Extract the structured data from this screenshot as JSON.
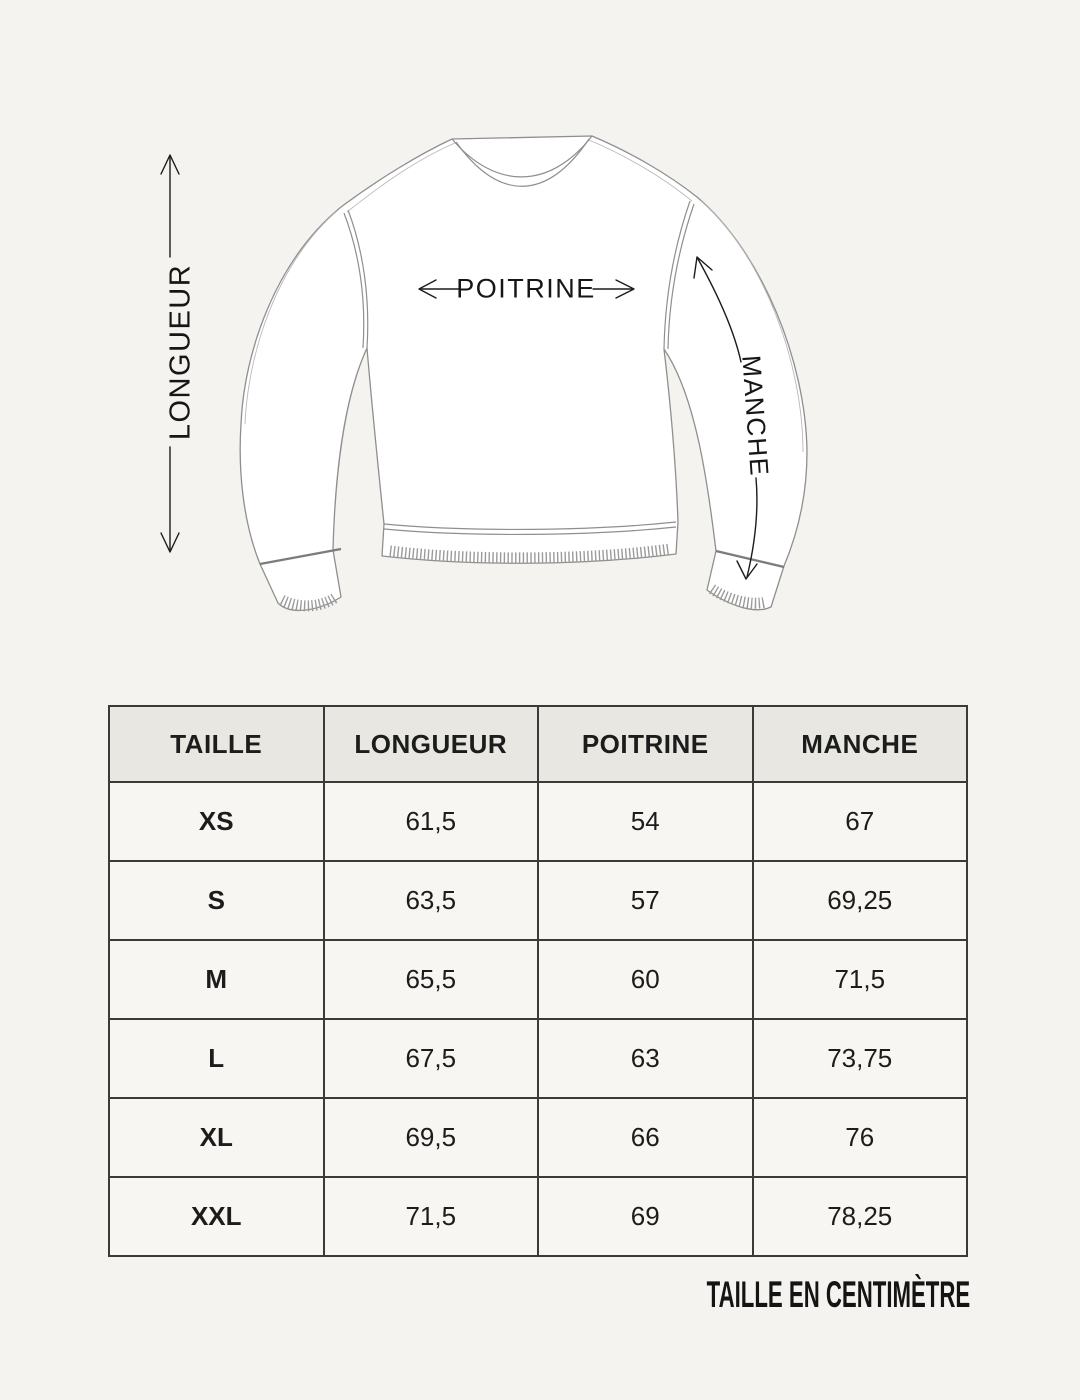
{
  "page": {
    "background": "#f4f3ef",
    "footer_note": "TAILLE EN CENTIMÈTRE"
  },
  "diagram": {
    "labels": {
      "length": "LONGUEUR",
      "chest": "POITRINE",
      "sleeve": "MANCHE"
    }
  },
  "size_table": {
    "columns": [
      "TAILLE",
      "LONGUEUR",
      "POITRINE",
      "MANCHE"
    ],
    "rows": [
      [
        "XS",
        "61,5",
        "54",
        "67"
      ],
      [
        "S",
        "63,5",
        "57",
        "69,25"
      ],
      [
        "M",
        "65,5",
        "60",
        "71,5"
      ],
      [
        "L",
        "67,5",
        "63",
        "73,75"
      ],
      [
        "XL",
        "69,5",
        "66",
        "76"
      ],
      [
        "XXL",
        "71,5",
        "69",
        "78,25"
      ]
    ]
  },
  "colors": {
    "page_background": "#f4f3ef",
    "table_header_background": "#e8e7e1",
    "table_cell_background": "#f7f6f2",
    "table_border": "#3a3a38",
    "text_ink": "#1c1c1c",
    "sketch_line": "#8f8f8f"
  }
}
